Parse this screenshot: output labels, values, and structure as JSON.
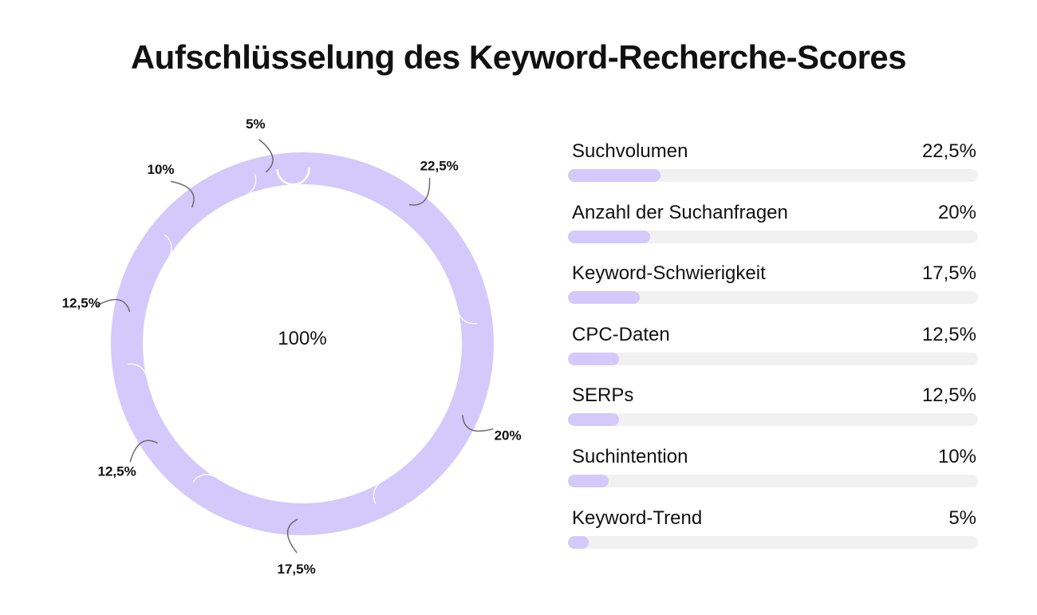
{
  "title": "Aufschlüsselung des Keyword-Recherche-Scores",
  "colors": {
    "accent": "#d3c9fb",
    "track": "#f1f1f1",
    "text": "#111111",
    "leader": "#6b6b6b"
  },
  "chart_data": [
    {
      "type": "pie",
      "variant": "donut",
      "center_label": "100%",
      "slices": [
        {
          "label": "22,5%",
          "value": 22.5
        },
        {
          "label": "20%",
          "value": 20
        },
        {
          "label": "17,5%",
          "value": 17.5
        },
        {
          "label": "12,5%",
          "value": 12.5
        },
        {
          "label": "12,5%",
          "value": 12.5
        },
        {
          "label": "10%",
          "value": 10
        },
        {
          "label": "5%",
          "value": 5
        }
      ]
    },
    {
      "type": "bar",
      "orientation": "horizontal",
      "categories": [
        "Suchvolumen",
        "Anzahl der Suchanfragen",
        "Keyword-Schwierigkeit",
        "CPC-Daten",
        "SERPs",
        "Suchintention",
        "Keyword-Trend"
      ],
      "values": [
        22.5,
        20,
        17.5,
        12.5,
        12.5,
        10,
        5
      ],
      "value_labels": [
        "22,5%",
        "20%",
        "17,5%",
        "12,5%",
        "12,5%",
        "10%",
        "5%"
      ],
      "xlim": [
        0,
        100
      ]
    }
  ]
}
